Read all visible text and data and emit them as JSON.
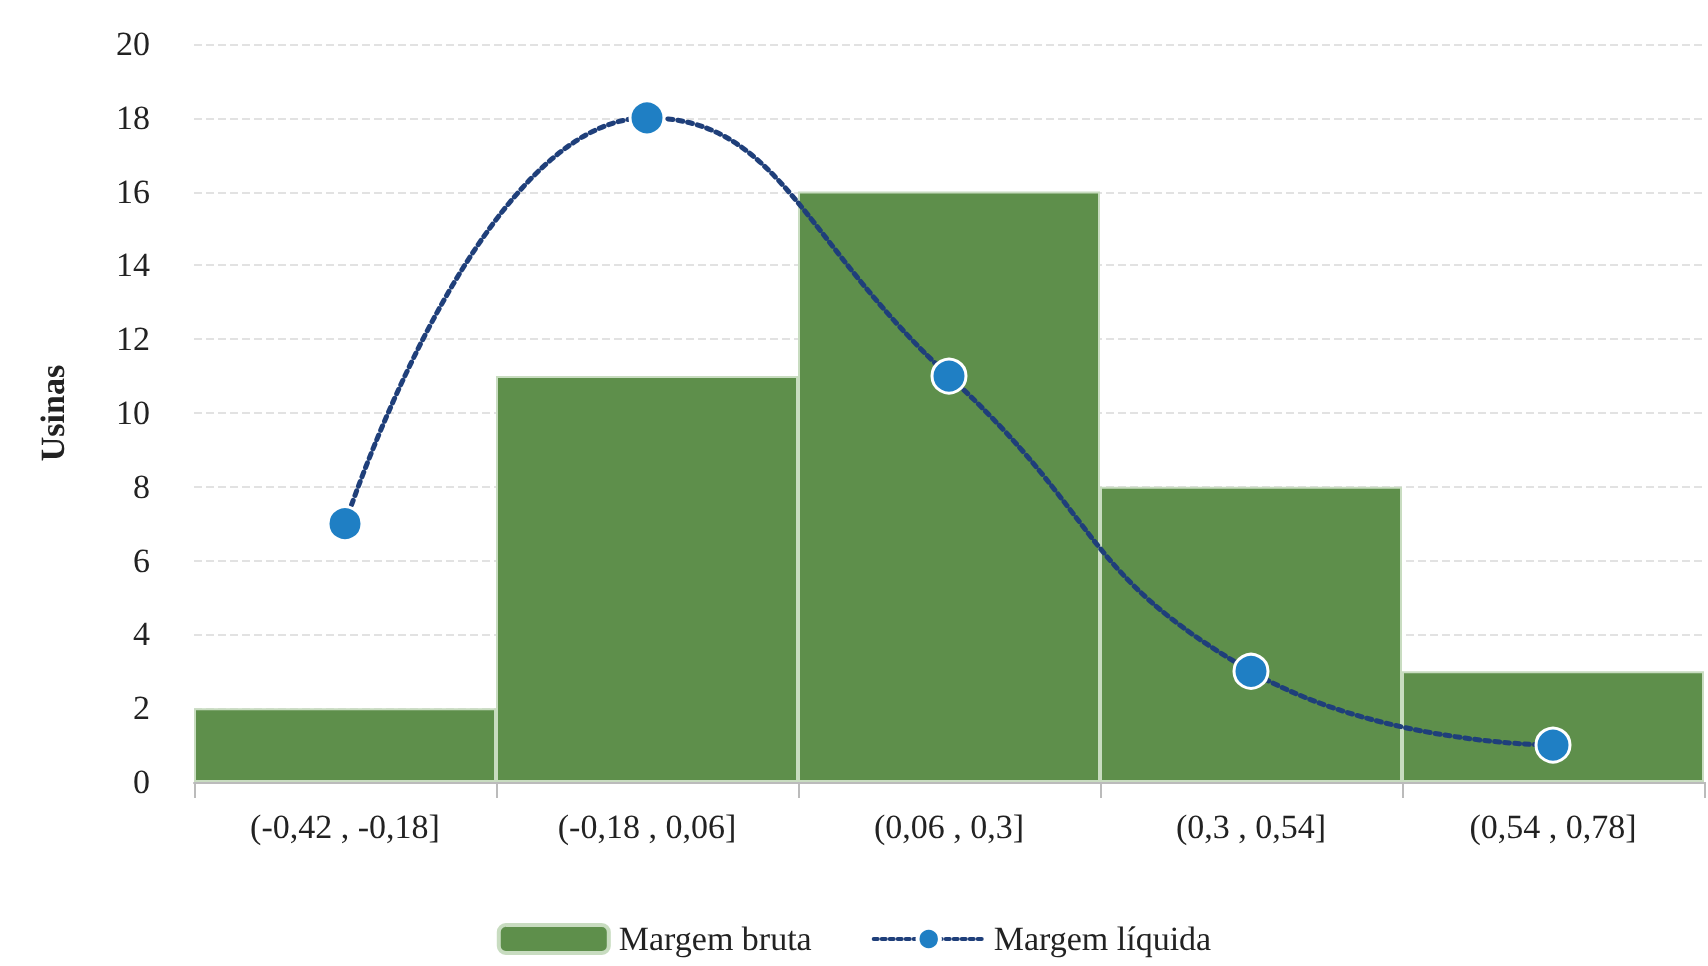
{
  "chart_data": {
    "type": "bar",
    "ylabel": "Usinas",
    "categories": [
      "(-0,42 , -0,18]",
      "(-0,18 , 0,06]",
      "(0,06 , 0,3]",
      "(0,3 , 0,54]",
      "(0,54 , 0,78]"
    ],
    "series": [
      {
        "name": "Margem bruta",
        "color": "#5e8f4b",
        "values": [
          2,
          11,
          16,
          8,
          3
        ]
      },
      {
        "name": "Margem líquida",
        "type": "line",
        "color": "#1f7fc4",
        "values": [
          7,
          18,
          11,
          3,
          1
        ]
      }
    ],
    "ylim": [
      0,
      20
    ],
    "yticks": [
      0,
      2,
      4,
      6,
      8,
      10,
      12,
      14,
      16,
      18,
      20
    ],
    "grid": "y",
    "legend": "bottom",
    "marker": "circle",
    "line_style": "dotted"
  }
}
